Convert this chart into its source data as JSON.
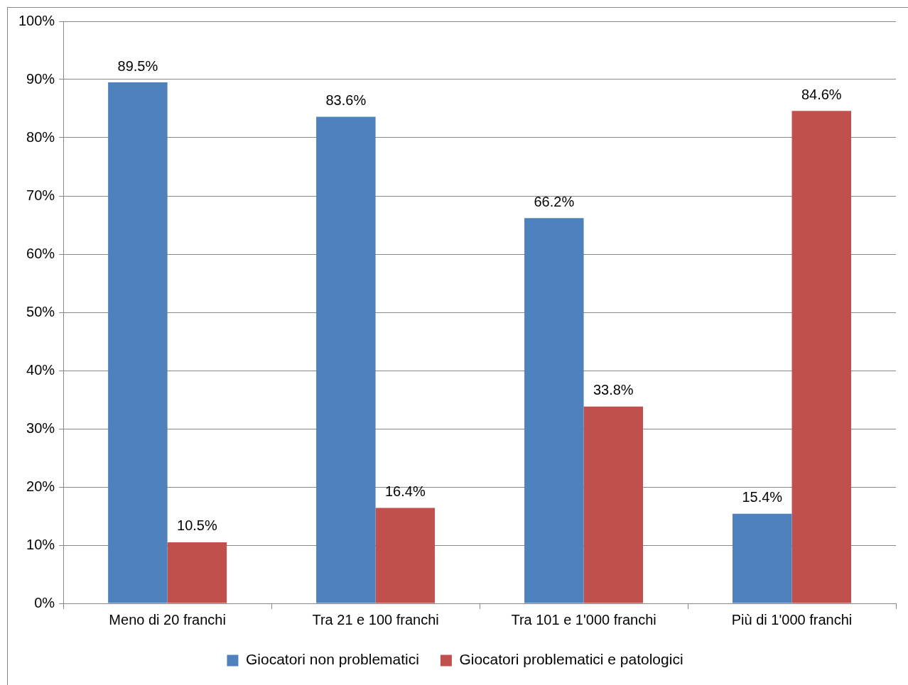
{
  "chart_data": {
    "type": "bar",
    "categories": [
      "Meno di 20 franchi",
      "Tra 21 e 100 franchi",
      "Tra 101 e 1'000 franchi",
      "Più di 1'000 franchi"
    ],
    "series": [
      {
        "name": "Giocatori non problematici",
        "color": "#4f81bd",
        "values": [
          89.5,
          83.6,
          66.2,
          15.4
        ],
        "value_labels": [
          "89.5%",
          "83.6%",
          "66.2%",
          "15.4%"
        ]
      },
      {
        "name": "Giocatori problematici e patologici",
        "color": "#c0504d",
        "values": [
          10.5,
          16.4,
          33.8,
          84.6
        ],
        "value_labels": [
          "10.5%",
          "16.4%",
          "33.8%",
          "84.6%"
        ]
      }
    ],
    "ylim": [
      0,
      100
    ],
    "yticks": [
      {
        "value": 0,
        "label": "0%"
      },
      {
        "value": 10,
        "label": "10%"
      },
      {
        "value": 20,
        "label": "20%"
      },
      {
        "value": 30,
        "label": "30%"
      },
      {
        "value": 40,
        "label": "40%"
      },
      {
        "value": 50,
        "label": "50%"
      },
      {
        "value": 60,
        "label": "60%"
      },
      {
        "value": 70,
        "label": "70%"
      },
      {
        "value": 80,
        "label": "80%"
      },
      {
        "value": 90,
        "label": "90%"
      },
      {
        "value": 100,
        "label": "100%"
      }
    ],
    "grid": "y",
    "legend": "bottom"
  }
}
